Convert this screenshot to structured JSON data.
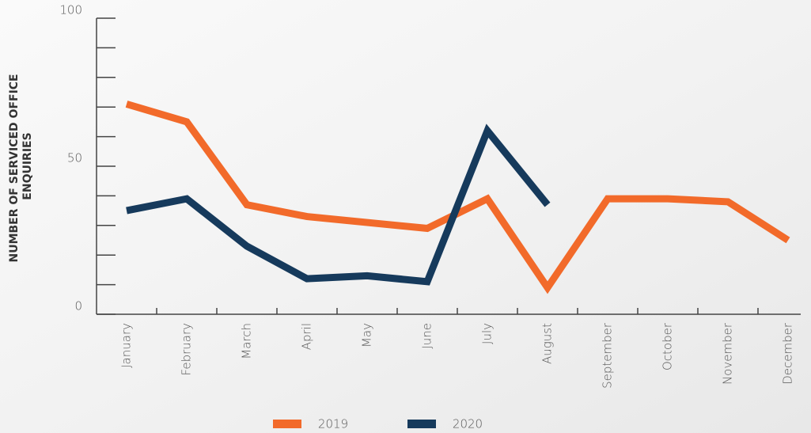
{
  "chart_data": {
    "type": "line",
    "y_label": [
      "NUMBER OF SERVICED OFFICE",
      "ENQUIRIES"
    ],
    "categories": [
      "January",
      "February",
      "March",
      "April",
      "May",
      "June",
      "July",
      "August",
      "September",
      "October",
      "November",
      "December"
    ],
    "series": [
      {
        "name": "2019",
        "color": "#f26a2a",
        "values": [
          71,
          65,
          37,
          33,
          31,
          29,
          39,
          9,
          39,
          39,
          38,
          25
        ]
      },
      {
        "name": "2020",
        "color": "#163a5c",
        "values": [
          35,
          39,
          23,
          12,
          13,
          11,
          62,
          37,
          null,
          null,
          null,
          null
        ]
      }
    ],
    "ylim": [
      0,
      100
    ],
    "yticks": [
      0,
      50,
      100
    ],
    "minor_yticks": [
      10,
      20,
      30,
      40,
      60,
      70,
      80,
      90
    ]
  }
}
